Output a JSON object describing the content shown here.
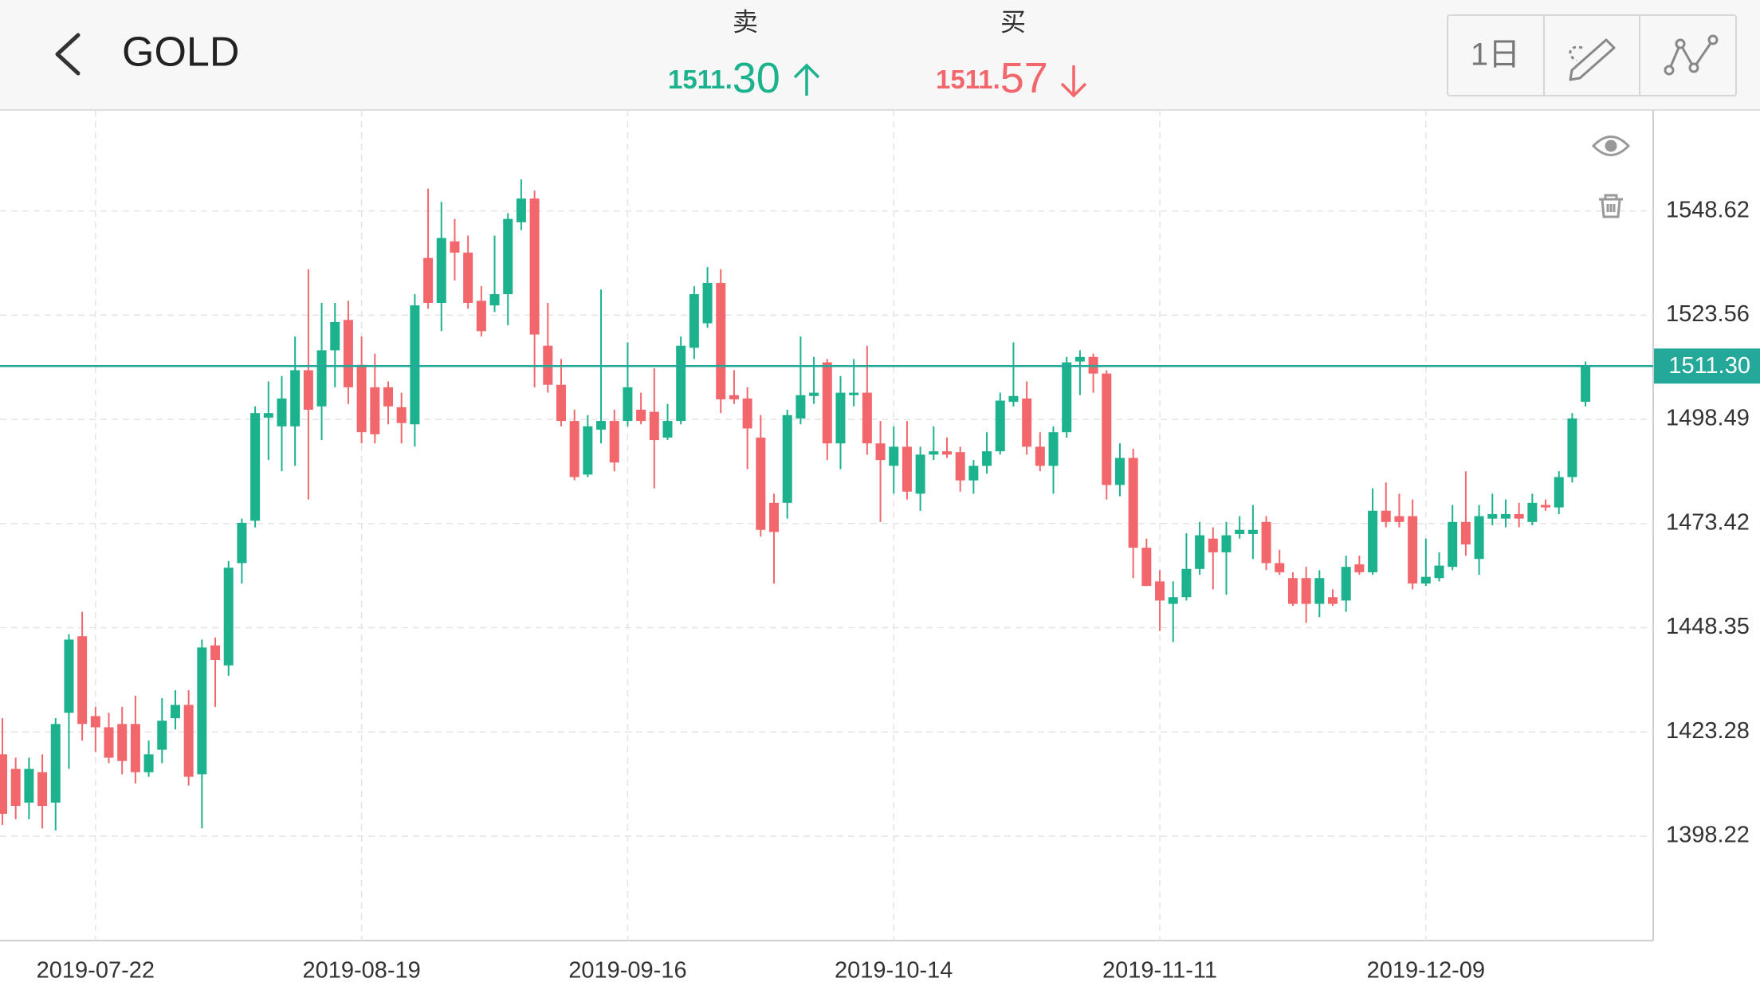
{
  "header": {
    "title": "GOLD",
    "sell": {
      "label": "卖",
      "int": "1511.",
      "dec": "30"
    },
    "buy": {
      "label": "买",
      "int": "1511.",
      "dec": "57"
    },
    "period": "1日"
  },
  "chart_data": {
    "type": "candlestick",
    "categories": [
      null,
      null,
      null,
      null,
      null,
      null,
      null,
      "2019-07-22",
      null,
      null,
      null,
      null,
      null,
      null,
      null,
      null,
      null,
      null,
      null,
      null,
      null,
      null,
      null,
      null,
      null,
      null,
      null,
      "2019-08-19",
      null,
      null,
      null,
      null,
      null,
      null,
      null,
      null,
      null,
      null,
      null,
      null,
      null,
      null,
      null,
      null,
      null,
      null,
      null,
      "2019-09-16",
      null,
      null,
      null,
      null,
      null,
      null,
      null,
      null,
      null,
      null,
      null,
      null,
      null,
      null,
      null,
      null,
      null,
      null,
      null,
      "2019-10-14",
      null,
      null,
      null,
      null,
      null,
      null,
      null,
      null,
      null,
      null,
      null,
      null,
      null,
      null,
      null,
      null,
      null,
      null,
      null,
      "2019-11-11",
      null,
      null,
      null,
      null,
      null,
      null,
      null,
      null,
      null,
      null,
      null,
      null,
      null,
      null,
      null,
      null,
      null,
      null,
      null,
      "2019-12-09",
      null,
      null,
      null,
      null,
      null,
      null,
      null,
      null,
      null,
      null,
      null,
      null
    ],
    "open": [
      1417.9,
      1414.4,
      1406.3,
      1413.6,
      1406.3,
      1427.9,
      1446.3,
      1427.1,
      1424.4,
      1425.2,
      1425.2,
      1413.6,
      1419.0,
      1426.6,
      1429.8,
      1413.1,
      1444.1,
      1439.3,
      1463.9,
      1474.1,
      1498.9,
      1496.8,
      1496.8,
      1510.3,
      1501.6,
      1515.1,
      1522.4,
      1511.6,
      1506.2,
      1506.2,
      1501.4,
      1497.3,
      1537.3,
      1526.5,
      1541.3,
      1538.6,
      1527.0,
      1525.9,
      1528.6,
      1545.9,
      1551.6,
      1516.2,
      1506.8,
      1498.1,
      1485.2,
      1496.0,
      1498.1,
      1498.1,
      1500.8,
      1500.3,
      1494.1,
      1498.1,
      1515.7,
      1521.6,
      1531.3,
      1504.3,
      1503.5,
      1494.1,
      1478.4,
      1478.4,
      1498.7,
      1504.1,
      1512.2,
      1492.7,
      1504.3,
      1504.9,
      1492.7,
      1487.3,
      1491.9,
      1480.6,
      1490.0,
      1490.8,
      1490.6,
      1483.8,
      1487.3,
      1490.8,
      1502.7,
      1503.5,
      1491.9,
      1487.3,
      1495.4,
      1512.4,
      1513.5,
      1509.5,
      1482.7,
      1489.2,
      1467.6,
      1459.5,
      1454.1,
      1455.7,
      1462.5,
      1469.8,
      1466.5,
      1470.9,
      1470.9,
      1473.8,
      1463.9,
      1460.3,
      1460.3,
      1454.1,
      1455.7,
      1454.9,
      1463.6,
      1461.7,
      1476.5,
      1475.2,
      1475.2,
      1459.0,
      1460.3,
      1463.0,
      1473.8,
      1464.9,
      1474.6,
      1474.6,
      1475.7,
      1473.8,
      1477.9,
      1477.3,
      1484.6,
      1502.7
    ],
    "high": [
      1426.6,
      1417.1,
      1417.1,
      1417.9,
      1426.6,
      1446.8,
      1452.2,
      1429.3,
      1427.9,
      1429.3,
      1432.0,
      1421.2,
      1431.4,
      1433.3,
      1433.3,
      1445.5,
      1446.0,
      1464.4,
      1474.6,
      1501.6,
      1507.6,
      1508.9,
      1518.4,
      1534.6,
      1526.5,
      1526.5,
      1527.0,
      1518.4,
      1514.3,
      1507.6,
      1504.9,
      1528.6,
      1554.0,
      1550.8,
      1546.7,
      1542.7,
      1530.5,
      1542.7,
      1548.1,
      1556.2,
      1553.5,
      1526.5,
      1513.0,
      1500.8,
      1499.5,
      1529.7,
      1500.8,
      1517.0,
      1504.9,
      1510.8,
      1502.2,
      1518.4,
      1530.5,
      1535.1,
      1534.6,
      1510.3,
      1506.2,
      1499.5,
      1480.6,
      1500.8,
      1518.4,
      1513.5,
      1513.0,
      1508.9,
      1513.0,
      1516.2,
      1498.1,
      1496.8,
      1498.1,
      1491.9,
      1496.8,
      1494.1,
      1491.9,
      1488.7,
      1495.4,
      1504.9,
      1517.0,
      1507.6,
      1495.4,
      1496.8,
      1513.5,
      1515.1,
      1514.3,
      1510.3,
      1492.7,
      1491.4,
      1469.8,
      1462.2,
      1459.5,
      1471.1,
      1473.8,
      1472.5,
      1473.8,
      1475.2,
      1477.9,
      1475.2,
      1467.1,
      1461.7,
      1463.0,
      1462.2,
      1457.6,
      1465.7,
      1465.7,
      1481.9,
      1483.3,
      1480.6,
      1479.2,
      1469.8,
      1466.5,
      1477.9,
      1486.0,
      1477.9,
      1480.6,
      1479.2,
      1478.4,
      1480.6,
      1479.2,
      1486.0,
      1500.0,
      1512.4
    ],
    "low": [
      1400.9,
      1402.3,
      1402.3,
      1400.1,
      1399.6,
      1414.4,
      1421.2,
      1418.5,
      1415.8,
      1413.1,
      1410.9,
      1412.5,
      1415.8,
      1423.9,
      1410.4,
      1400.1,
      1429.3,
      1436.8,
      1459.0,
      1472.5,
      1488.7,
      1486.0,
      1487.3,
      1479.2,
      1493.5,
      1506.2,
      1502.2,
      1492.7,
      1492.7,
      1497.3,
      1492.7,
      1491.9,
      1525.1,
      1519.7,
      1531.9,
      1525.1,
      1518.4,
      1524.3,
      1521.1,
      1544.0,
      1506.2,
      1504.9,
      1496.8,
      1483.8,
      1484.6,
      1492.7,
      1486.0,
      1496.8,
      1497.3,
      1481.9,
      1493.5,
      1497.3,
      1513.0,
      1520.5,
      1500.0,
      1502.2,
      1486.5,
      1470.3,
      1459.0,
      1474.6,
      1497.3,
      1502.2,
      1488.7,
      1486.5,
      1501.6,
      1490.0,
      1473.8,
      1480.6,
      1479.2,
      1476.5,
      1488.7,
      1489.2,
      1481.1,
      1480.6,
      1485.4,
      1490.0,
      1501.6,
      1490.0,
      1486.0,
      1480.6,
      1494.1,
      1504.3,
      1504.9,
      1479.2,
      1480.0,
      1460.3,
      1458.4,
      1447.6,
      1444.9,
      1454.9,
      1461.1,
      1457.6,
      1456.3,
      1469.8,
      1464.9,
      1462.2,
      1461.1,
      1453.6,
      1449.5,
      1450.9,
      1453.6,
      1452.2,
      1461.1,
      1461.1,
      1472.5,
      1472.5,
      1457.6,
      1458.4,
      1459.5,
      1462.2,
      1465.7,
      1461.1,
      1473.0,
      1472.5,
      1472.5,
      1473.0,
      1476.5,
      1475.7,
      1483.3,
      1501.6
    ],
    "close": [
      1403.6,
      1405.5,
      1414.4,
      1405.5,
      1425.2,
      1445.5,
      1425.2,
      1424.4,
      1417.1,
      1416.3,
      1413.6,
      1417.9,
      1426.0,
      1429.8,
      1412.5,
      1443.6,
      1440.6,
      1462.8,
      1473.6,
      1500.0,
      1500.0,
      1503.5,
      1510.3,
      1500.8,
      1515.1,
      1521.9,
      1506.2,
      1495.4,
      1494.9,
      1501.6,
      1497.6,
      1525.9,
      1526.5,
      1542.1,
      1538.6,
      1526.5,
      1519.7,
      1528.6,
      1546.7,
      1551.6,
      1518.9,
      1506.8,
      1498.1,
      1484.6,
      1496.8,
      1498.1,
      1488.1,
      1506.2,
      1498.1,
      1493.5,
      1498.1,
      1516.2,
      1528.6,
      1531.3,
      1503.3,
      1503.3,
      1496.3,
      1471.9,
      1471.4,
      1499.5,
      1504.3,
      1504.9,
      1492.7,
      1504.9,
      1504.9,
      1492.7,
      1488.7,
      1491.9,
      1481.1,
      1490.0,
      1490.8,
      1490.0,
      1483.8,
      1487.3,
      1490.8,
      1503.0,
      1504.1,
      1491.9,
      1487.3,
      1495.4,
      1512.2,
      1513.5,
      1509.5,
      1482.7,
      1489.2,
      1467.6,
      1458.4,
      1454.9,
      1455.7,
      1462.5,
      1470.6,
      1466.5,
      1470.6,
      1471.9,
      1471.9,
      1463.9,
      1461.7,
      1454.1,
      1454.1,
      1460.3,
      1454.1,
      1463.0,
      1461.7,
      1476.5,
      1473.8,
      1473.8,
      1459.0,
      1460.6,
      1463.3,
      1473.8,
      1468.4,
      1475.2,
      1475.7,
      1475.7,
      1474.6,
      1478.4,
      1477.3,
      1484.6,
      1498.7,
      1511.3
    ],
    "up_color": "#1cb28e",
    "down_color": "#f2676b",
    "ylim": [
      1373.1,
      1572.9
    ],
    "yticks": [
      1398.22,
      1423.28,
      1448.35,
      1473.42,
      1498.49,
      1523.56,
      1548.62
    ],
    "grid": true,
    "price_line": {
      "value": 1511.3,
      "label": "1511.30",
      "color": "#24a89a"
    }
  }
}
